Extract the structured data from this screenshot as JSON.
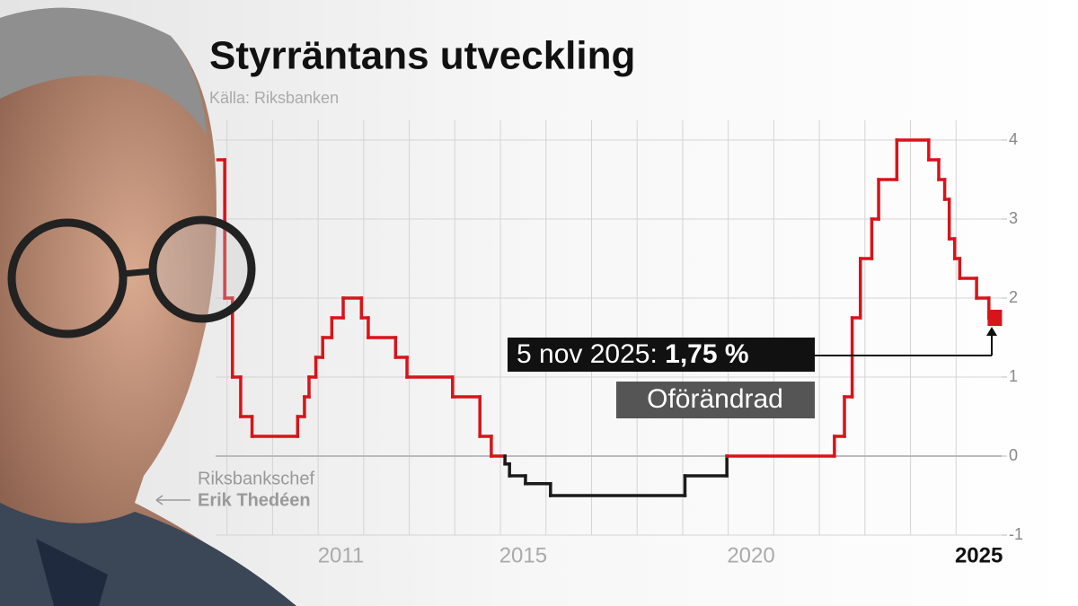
{
  "chart_data": {
    "type": "step",
    "title": "Styrräntans utveckling",
    "subtitle": "Källa: Riksbanken",
    "person": {
      "role": "Riksbankschef",
      "name": "Erik Thedéen"
    },
    "annotation": {
      "date": "5 nov 2025:",
      "value": "1,75 %",
      "status": "Oförändrad"
    },
    "x": [
      2008.8,
      2008.95,
      2009.12,
      2009.3,
      2009.55,
      2010.55,
      2010.7,
      2010.8,
      2010.95,
      2011.1,
      2011.3,
      2011.55,
      2011.95,
      2012.1,
      2012.7,
      2012.95,
      2013.95,
      2014.55,
      2014.8,
      2015.1,
      2015.2,
      2015.55,
      2016.1,
      2019.05,
      2019.97,
      2022.33,
      2022.55,
      2022.72,
      2022.9,
      2023.15,
      2023.3,
      2023.7,
      2024.4,
      2024.62,
      2024.75,
      2024.85,
      2024.97,
      2025.08,
      2025.45,
      2025.72,
      2025.85
    ],
    "values": [
      3.75,
      2.0,
      1.0,
      0.5,
      0.25,
      0.5,
      0.75,
      1.0,
      1.25,
      1.5,
      1.75,
      2.0,
      1.75,
      1.5,
      1.25,
      1.0,
      0.75,
      0.25,
      0.0,
      -0.1,
      -0.25,
      -0.35,
      -0.5,
      -0.25,
      0.0,
      0.25,
      0.75,
      1.75,
      2.5,
      3.0,
      3.5,
      4.0,
      3.75,
      3.5,
      3.25,
      2.75,
      2.5,
      2.25,
      2.0,
      1.75,
      1.75
    ],
    "color": "#d7141a",
    "negative_color": "#1a1a1a",
    "xlim": [
      2008.75,
      2026.0
    ],
    "xticks": [
      2011,
      2015,
      2020,
      2025
    ],
    "xgrid": [
      2009,
      2010,
      2011,
      2012,
      2013,
      2014,
      2015,
      2016,
      2017,
      2018,
      2019,
      2020,
      2021,
      2022,
      2023,
      2024,
      2025
    ],
    "ylim": [
      -1,
      4.25
    ],
    "yticks": [
      -1,
      0,
      1,
      2,
      3,
      4
    ],
    "grid": true
  }
}
